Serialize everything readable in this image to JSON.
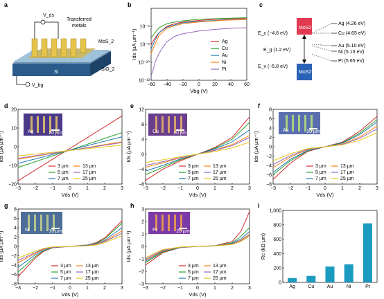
{
  "panels": {
    "a": {
      "label": "a",
      "texts": {
        "vds": "V_ds",
        "transferred": "Transferred",
        "metals": "metals",
        "mos2": "MoS_2",
        "si": "Si",
        "sio2": "SiO_2",
        "vbg": "V_bg"
      }
    },
    "b": {
      "label": "b"
    },
    "c": {
      "label": "c",
      "mos2_top": "MoS2",
      "mos2_bottom": "MoS2",
      "ec": "E_c (−4.6 eV)",
      "eg": "E_g (1.2 eV)",
      "ev": "E_v (−5.8 eV)",
      "metals": [
        "Ag (4.26 eV)",
        "Cu (4.65 eV)",
        "Au (5.10 eV)",
        "Ni (5.15 eV)",
        "Pt (5.65 eV)"
      ]
    },
    "d": {
      "label": "d",
      "inset": "Ag",
      "scale": "20 µm"
    },
    "e": {
      "label": "e",
      "inset": "Cu",
      "scale": "20 µm"
    },
    "f": {
      "label": "f",
      "inset": "Au",
      "scale": "20 µm"
    },
    "g": {
      "label": "g",
      "inset": "Ni",
      "scale": "10 µm"
    },
    "h": {
      "label": "h",
      "inset": "Pt",
      "scale": "20 µm"
    },
    "i": {
      "label": "i"
    }
  },
  "colors": {
    "Ag": "#d62728",
    "Cu": "#2ca02c",
    "Au": "#1f77b4",
    "Ni": "#ff7f0e",
    "Pt": "#9467bd",
    "3um": "#d62728",
    "5um": "#2ca02c",
    "7um": "#1f77b4",
    "13um": "#ff7f0e",
    "17um": "#9467bd",
    "25um": "#e6c619",
    "bar": "#1a9bbf"
  },
  "chart_data": [
    {
      "id": "b",
      "type": "line",
      "xlabel": "V_bg (V)",
      "ylabel": "I_ds (µA µm⁻¹)",
      "yscale": "log",
      "xlim": [
        -60,
        60
      ],
      "ylim": [
        1e-12,
        0.0001
      ],
      "xticks": [
        "−60",
        "−40",
        "−20",
        "0",
        "20",
        "40",
        "60"
      ],
      "yticks": [
        "10⁻¹²",
        "10⁻¹⁰",
        "10⁻⁸",
        "10⁻⁶"
      ],
      "legend": [
        "Ag",
        "Cu",
        "Au",
        "Ni",
        "Pt"
      ],
      "series": [
        {
          "name": "Ag",
          "x": [
            -60,
            -55,
            -50,
            -40,
            -30,
            -20,
            0,
            20,
            40,
            60
          ],
          "y": [
            1e-08,
            5e-08,
            2e-07,
            1e-06,
            2e-06,
            3e-06,
            4.5e-06,
            6e-06,
            7e-06,
            8e-06
          ]
        },
        {
          "name": "Cu",
          "x": [
            -60,
            -55,
            -50,
            -40,
            -30,
            -20,
            0,
            20,
            40,
            60
          ],
          "y": [
            5e-08,
            2e-07,
            7e-07,
            2e-06,
            3e-06,
            4e-06,
            6e-06,
            7e-06,
            8e-06,
            9e-06
          ]
        },
        {
          "name": "Au",
          "x": [
            -60,
            -55,
            -50,
            -40,
            -30,
            -20,
            0,
            20,
            40,
            60
          ],
          "y": [
            3e-09,
            3e-08,
            2e-07,
            8e-07,
            1.5e-06,
            2.5e-06,
            3.5e-06,
            4.5e-06,
            5.5e-06,
            6e-06
          ]
        },
        {
          "name": "Ni",
          "x": [
            -60,
            -55,
            -50,
            -40,
            -30,
            -20,
            0,
            20,
            40,
            60
          ],
          "y": [
            1e-09,
            1e-08,
            1e-07,
            6e-07,
            1.2e-06,
            2e-06,
            3e-06,
            4e-06,
            5e-06,
            5.5e-06
          ]
        },
        {
          "name": "Pt",
          "x": [
            -60,
            -57,
            -55,
            -50,
            -45,
            -40,
            -30,
            -20,
            0,
            20,
            40,
            60
          ],
          "y": [
            3e-12,
            2e-11,
            1e-10,
            1e-09,
            5e-09,
            2e-08,
            8e-08,
            1.5e-07,
            3e-07,
            4.5e-07,
            6e-07,
            7e-07
          ]
        }
      ]
    },
    {
      "id": "d",
      "type": "line",
      "xlabel": "V_ds (V)",
      "ylabel": "I_ds (µA µm⁻¹)",
      "xlim": [
        -3,
        3
      ],
      "ylim": [
        -20,
        25
      ],
      "xticks": [
        "−3",
        "−2",
        "−1",
        "0",
        "1",
        "2",
        "3"
      ],
      "yticks": [
        "−20",
        "−10",
        "0",
        "10",
        "20"
      ],
      "legend": [
        "3 µm",
        "5 µm",
        "7 µm",
        "13 µm",
        "17 µm",
        "25 µm"
      ],
      "series": [
        {
          "name": "3 µm",
          "x": [
            -3,
            3
          ],
          "y": [
            -18,
            21
          ]
        },
        {
          "name": "5 µm",
          "x": [
            -3,
            3
          ],
          "y": [
            -10,
            11
          ]
        },
        {
          "name": "7 µm",
          "x": [
            -3,
            3
          ],
          "y": [
            -7.5,
            8.5
          ]
        },
        {
          "name": "13 µm",
          "x": [
            -3,
            3
          ],
          "y": [
            -5,
            5.5
          ]
        },
        {
          "name": "17 µm",
          "x": [
            -3,
            3
          ],
          "y": [
            -4.5,
            5
          ]
        },
        {
          "name": "25 µm",
          "x": [
            -3,
            3
          ],
          "y": [
            -3,
            3.5
          ]
        }
      ]
    },
    {
      "id": "e",
      "type": "line",
      "xlabel": "V_ds (V)",
      "ylabel": "I_ds (µA µm⁻¹)",
      "xlim": [
        -3,
        3
      ],
      "ylim": [
        -8,
        12
      ],
      "xticks": [
        "−3",
        "−2",
        "−1",
        "0",
        "1",
        "2",
        "3"
      ],
      "yticks": [
        "−8",
        "−4",
        "0",
        "4",
        "8",
        "12"
      ],
      "legend": [
        "3 µm",
        "5 µm",
        "7 µm",
        "13 µm",
        "17 µm",
        "25 µm"
      ],
      "series": [
        {
          "name": "3 µm",
          "x": [
            -3,
            -2,
            -1,
            0,
            1,
            2,
            3
          ],
          "y": [
            -7,
            -4,
            -1.8,
            0,
            1.8,
            4.5,
            10
          ]
        },
        {
          "name": "5 µm",
          "x": [
            -3,
            -2,
            -1,
            0,
            1,
            2,
            3
          ],
          "y": [
            -5.5,
            -3.5,
            -1.5,
            0,
            1.6,
            4,
            8.5
          ]
        },
        {
          "name": "7 µm",
          "x": [
            -3,
            -2,
            -1,
            0,
            1,
            2,
            3
          ],
          "y": [
            -4.5,
            -3,
            -1.3,
            0,
            1.4,
            3.3,
            6.5
          ]
        },
        {
          "name": "13 µm",
          "x": [
            -3,
            -2,
            -1,
            0,
            1,
            2,
            3
          ],
          "y": [
            -3.5,
            -2.3,
            -1,
            0,
            1.1,
            2.6,
            5
          ]
        },
        {
          "name": "17 µm",
          "x": [
            -3,
            -2,
            -1,
            0,
            1,
            2,
            3
          ],
          "y": [
            -3,
            -2,
            -0.9,
            0,
            1,
            2.3,
            4.5
          ]
        },
        {
          "name": "25 µm",
          "x": [
            -3,
            -2,
            -1,
            0,
            1,
            2,
            3
          ],
          "y": [
            -2.2,
            -1.5,
            -0.7,
            0,
            0.7,
            1.7,
            3.2
          ]
        }
      ]
    },
    {
      "id": "f",
      "type": "line",
      "xlabel": "V_ds (V)",
      "ylabel": "I_ds (µA µm⁻¹)",
      "xlim": [
        -3,
        3
      ],
      "ylim": [
        -8,
        8
      ],
      "xticks": [
        "−3",
        "−2",
        "−1",
        "0",
        "1",
        "2",
        "3"
      ],
      "yticks": [
        "−8",
        "−6",
        "−4",
        "−2",
        "0",
        "2",
        "4",
        "6",
        "8"
      ],
      "legend": [
        "3 µm",
        "5 µm",
        "7 µm",
        "13 µm",
        "17 µm",
        "25 µm"
      ],
      "series": [
        {
          "name": "3 µm",
          "x": [
            -3,
            -2,
            -1,
            0,
            1,
            2,
            3
          ],
          "y": [
            -7,
            -3.5,
            -1,
            0,
            1,
            3.3,
            6.5
          ]
        },
        {
          "name": "5 µm",
          "x": [
            -3,
            -2,
            -1,
            0,
            1,
            2,
            3
          ],
          "y": [
            -6,
            -3,
            -0.9,
            0,
            0.9,
            2.9,
            5.8
          ]
        },
        {
          "name": "7 µm",
          "x": [
            -3,
            -2,
            -1,
            0,
            1,
            2,
            3
          ],
          "y": [
            -5.5,
            -2.7,
            -0.8,
            0,
            0.8,
            2.6,
            5.3
          ]
        },
        {
          "name": "13 µm",
          "x": [
            -3,
            -2,
            -1,
            0,
            1,
            2,
            3
          ],
          "y": [
            -4.5,
            -2.2,
            -0.6,
            0,
            0.6,
            2.1,
            4.4
          ]
        },
        {
          "name": "17 µm",
          "x": [
            -3,
            -2,
            -1,
            0,
            1,
            2,
            3
          ],
          "y": [
            -3.8,
            -1.9,
            -0.5,
            0,
            0.5,
            1.8,
            3.8
          ]
        },
        {
          "name": "25 µm",
          "x": [
            -3,
            -2,
            -1,
            0,
            1,
            2,
            3
          ],
          "y": [
            -3,
            -1.5,
            -0.4,
            0,
            0.4,
            1.4,
            3
          ]
        }
      ]
    },
    {
      "id": "g",
      "type": "line",
      "xlabel": "V_ds (V)",
      "ylabel": "I_ds (µA µm⁻¹)",
      "xlim": [
        -3,
        3
      ],
      "ylim": [
        -8,
        8
      ],
      "xticks": [
        "−3",
        "−2",
        "−1",
        "0",
        "1",
        "2",
        "3"
      ],
      "yticks": [
        "−8",
        "−6",
        "−4",
        "−2",
        "0",
        "2",
        "4",
        "6",
        "8"
      ],
      "legend": [
        "3 µm",
        "5 µm",
        "7 µm",
        "13 µm",
        "17 µm",
        "25 µm"
      ],
      "series": [
        {
          "name": "3 µm",
          "x": [
            -3,
            -2,
            -1.5,
            -1,
            0,
            1,
            1.5,
            2,
            3
          ],
          "y": [
            -6.5,
            -2.5,
            -1,
            -0.3,
            0,
            0.3,
            0.8,
            1.8,
            5.5
          ]
        },
        {
          "name": "5 µm",
          "x": [
            -3,
            -2,
            -1.5,
            -1,
            0,
            1,
            1.5,
            2,
            3
          ],
          "y": [
            -5.5,
            -2.2,
            -0.9,
            -0.3,
            0,
            0.3,
            0.7,
            1.6,
            5
          ]
        },
        {
          "name": "7 µm",
          "x": [
            -3,
            -2,
            -1.5,
            -1,
            0,
            1,
            1.5,
            2,
            3
          ],
          "y": [
            -4.5,
            -1.8,
            -0.8,
            -0.2,
            0,
            0.2,
            0.6,
            1.3,
            4
          ]
        },
        {
          "name": "13 µm",
          "x": [
            -3,
            -2,
            -1.5,
            -1,
            0,
            1,
            1.5,
            2,
            3
          ],
          "y": [
            -3.5,
            -1.5,
            -0.6,
            -0.2,
            0,
            0.2,
            0.5,
            1.1,
            3.3
          ]
        },
        {
          "name": "17 µm",
          "x": [
            -3,
            -2,
            -1.5,
            -1,
            0,
            1,
            1.5,
            2,
            3
          ],
          "y": [
            -3,
            -1.3,
            -0.5,
            -0.2,
            0,
            0.2,
            0.4,
            1,
            2.8
          ]
        },
        {
          "name": "25 µm",
          "x": [
            -3,
            -2,
            -1.5,
            -1,
            0,
            1,
            1.5,
            2,
            3
          ],
          "y": [
            -2.5,
            -1,
            -0.4,
            -0.1,
            0,
            0.1,
            0.3,
            0.8,
            2.3
          ]
        }
      ]
    },
    {
      "id": "h",
      "type": "line",
      "xlabel": "V_ds (V)",
      "ylabel": "I_ds (µA µm⁻¹)",
      "xlim": [
        -3,
        3
      ],
      "ylim": [
        -3,
        3
      ],
      "xticks": [
        "−3",
        "−2",
        "−1",
        "0",
        "1",
        "2",
        "3"
      ],
      "yticks": [
        "−3",
        "−2",
        "−1",
        "0",
        "1",
        "2",
        "3"
      ],
      "legend": [
        "3 µm",
        "5 µm",
        "7 µm",
        "13 µm",
        "17 µm",
        "25 µm"
      ],
      "series": [
        {
          "name": "3 µm",
          "x": [
            -3,
            -2,
            -1,
            0,
            1,
            2,
            2.5,
            3
          ],
          "y": [
            -1.5,
            -0.5,
            -0.1,
            0,
            0.05,
            0.4,
            1.2,
            2.8
          ]
        },
        {
          "name": "5 µm",
          "x": [
            -3,
            -2,
            -1,
            0,
            1,
            2,
            2.5,
            3
          ],
          "y": [
            -1.3,
            -0.45,
            -0.1,
            0,
            0.05,
            0.3,
            0.8,
            1.5
          ]
        },
        {
          "name": "7 µm",
          "x": [
            -3,
            -2,
            -1,
            0,
            1,
            2,
            2.5,
            3
          ],
          "y": [
            -1.2,
            -0.4,
            -0.08,
            0,
            0.04,
            0.25,
            0.6,
            1.2
          ]
        },
        {
          "name": "13 µm",
          "x": [
            -3,
            -2,
            -1,
            0,
            1,
            2,
            2.5,
            3
          ],
          "y": [
            -1.1,
            -0.35,
            -0.07,
            0,
            0.04,
            0.2,
            0.5,
            1
          ]
        },
        {
          "name": "17 µm",
          "x": [
            -3,
            -2,
            -1,
            0,
            1,
            2,
            2.5,
            3
          ],
          "y": [
            -1,
            -0.3,
            -0.06,
            0,
            0.03,
            0.18,
            0.45,
            0.9
          ]
        },
        {
          "name": "25 µm",
          "x": [
            -3,
            -2,
            -1,
            0,
            1,
            2,
            2.5,
            3
          ],
          "y": [
            -0.9,
            -0.25,
            -0.05,
            0,
            0.03,
            0.15,
            0.4,
            0.8
          ]
        }
      ]
    },
    {
      "id": "i",
      "type": "bar",
      "xlabel": "",
      "ylabel": "R_c (kΩ µm)",
      "categories": [
        "Ag",
        "Cu",
        "Au",
        "Ni",
        "Pt"
      ],
      "values": [
        60,
        90,
        220,
        250,
        820
      ],
      "ylim": [
        0,
        1000
      ],
      "yticks": [
        "0",
        "200",
        "400",
        "600",
        "800",
        "1,000"
      ]
    }
  ]
}
